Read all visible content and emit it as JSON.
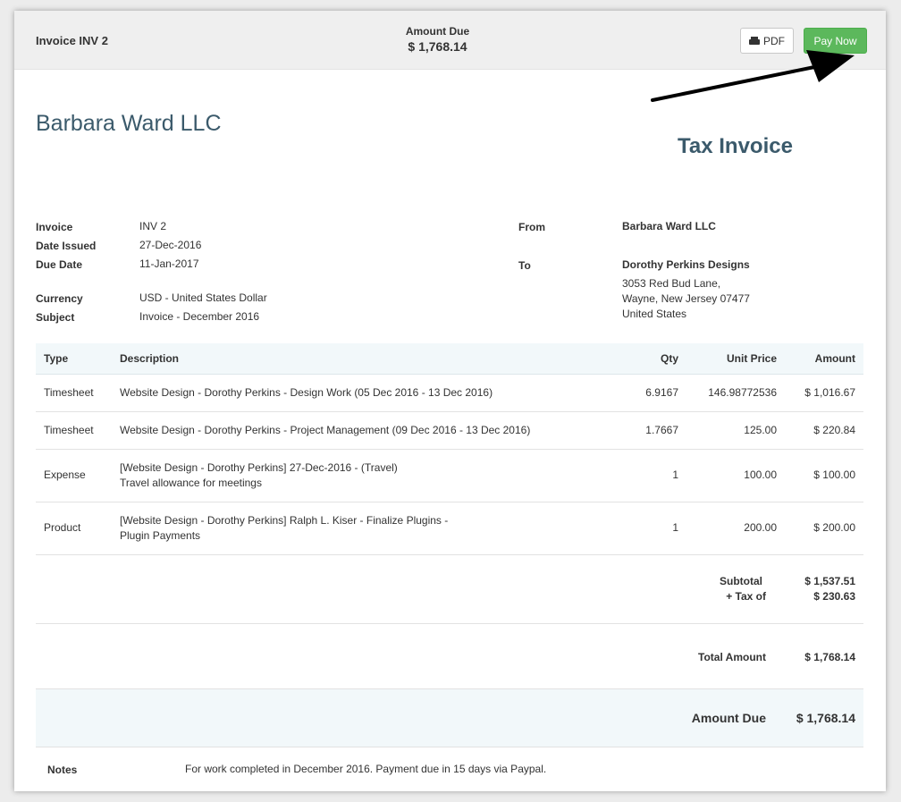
{
  "header": {
    "invoice_title": "Invoice INV 2",
    "amount_due_label": "Amount Due",
    "amount_due_value": "$ 1,768.14",
    "pdf_label": "PDF",
    "pay_now_label": "Pay Now",
    "icons": {
      "pdf": "printer-icon"
    },
    "colors": {
      "pay_button": "#5cb85c",
      "heading": "#3b5a6b"
    }
  },
  "company_name": "Barbara Ward LLC",
  "document_type": "Tax Invoice",
  "meta": {
    "invoice_label": "Invoice",
    "invoice_value": "INV 2",
    "issued_label": "Date Issued",
    "issued_value": "27-Dec-2016",
    "due_label": "Due Date",
    "due_value": "11-Jan-2017",
    "currency_label": "Currency",
    "currency_value": "USD - United States Dollar",
    "subject_label": "Subject",
    "subject_value": "Invoice - December 2016"
  },
  "parties": {
    "from_label": "From",
    "from_name": "Barbara Ward LLC",
    "to_label": "To",
    "to_name": "Dorothy Perkins Designs",
    "to_address_1": "3053 Red Bud Lane,",
    "to_address_2": "Wayne, New Jersey 07477",
    "to_address_3": "United States"
  },
  "table": {
    "headers": {
      "type": "Type",
      "description": "Description",
      "qty": "Qty",
      "unit_price": "Unit Price",
      "amount": "Amount"
    },
    "rows": [
      {
        "type": "Timesheet",
        "desc_1": "Website Design - Dorothy Perkins - Design Work (05 Dec 2016 - 13 Dec 2016)",
        "desc_2": "",
        "qty": "6.9167",
        "unit_price": "146.98772536",
        "amount": "$ 1,016.67"
      },
      {
        "type": "Timesheet",
        "desc_1": "Website Design - Dorothy Perkins - Project Management (09 Dec 2016 - 13 Dec 2016)",
        "desc_2": "",
        "qty": "1.7667",
        "unit_price": "125.00",
        "amount": "$ 220.84"
      },
      {
        "type": "Expense",
        "desc_1": "[Website Design - Dorothy Perkins] 27-Dec-2016 - (Travel)",
        "desc_2": "Travel allowance for meetings",
        "qty": "1",
        "unit_price": "100.00",
        "amount": "$ 100.00"
      },
      {
        "type": "Product",
        "desc_1": "[Website Design - Dorothy Perkins] Ralph L. Kiser - Finalize Plugins -",
        "desc_2": "Plugin Payments",
        "qty": "1",
        "unit_price": "200.00",
        "amount": "$ 200.00"
      }
    ]
  },
  "totals": {
    "subtotal_label": "Subtotal",
    "subtotal_value": "$ 1,537.51",
    "tax_label": "+ Tax of",
    "tax_value": "$ 230.63",
    "total_label": "Total Amount",
    "total_value": "$ 1,768.14",
    "amount_due_label": "Amount Due",
    "amount_due_value": "$ 1,768.14"
  },
  "notes": {
    "label": "Notes",
    "text": "For work completed in December 2016. Payment due in 15 days via Paypal."
  }
}
